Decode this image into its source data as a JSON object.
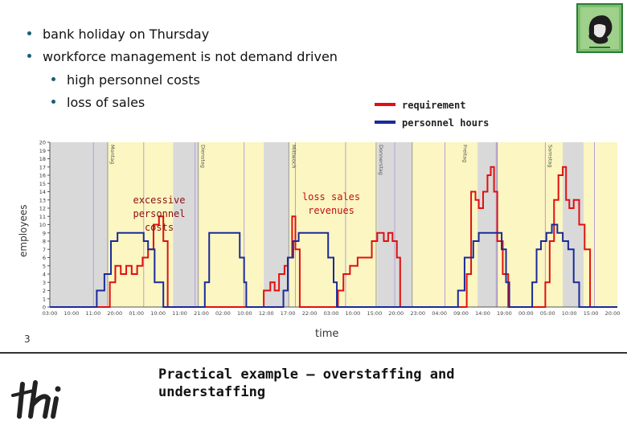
{
  "bullets": [
    {
      "text": "bank holiday on Thursday",
      "level": 1
    },
    {
      "text": "workforce management is not demand driven",
      "level": 1
    },
    {
      "text": "high personnel costs",
      "level": 2
    },
    {
      "text": "loss of sales",
      "level": 2
    }
  ],
  "legend": {
    "requirement": "requirement",
    "personnel_hours": "personnel hours"
  },
  "annotations": {
    "excessive": "excessive personnel costs",
    "loss": "loss sales revenues"
  },
  "axis": {
    "ylabel": "employees",
    "xlabel": "time"
  },
  "slide": {
    "page_number": "3",
    "title": "Practical example – overstaffing and understaffing"
  },
  "colors": {
    "requirement": "#e01010",
    "personnel_hours": "#1a2a99",
    "yellow_band": "#fbf6c2",
    "gray_band": "#d9d9d9"
  },
  "chart_data": {
    "type": "line",
    "title": "",
    "xlabel": "time",
    "ylabel": "employees",
    "ylim": [
      0,
      20
    ],
    "yticks": [
      0,
      1,
      2,
      3,
      4,
      5,
      6,
      7,
      8,
      9,
      10,
      11,
      12,
      13,
      14,
      15,
      16,
      17,
      18,
      19,
      20
    ],
    "xtick_labels": [
      "03:00",
      "10:00",
      "11:00",
      "20:00",
      "01:00",
      "10:00",
      "11:00",
      "21:00",
      "02:00",
      "10:00",
      "12:00",
      "17:00",
      "22:00",
      "03:00",
      "10:00",
      "15:00",
      "20:00",
      "23:00",
      "04:00",
      "09:00",
      "14:00",
      "19:00",
      "00:00",
      "05:00",
      "10:00",
      "15:00",
      "20:00"
    ],
    "day_labels": [
      "Montag",
      "Dienstag",
      "Mittwoch",
      "Donnerstag",
      "Freitag",
      "Samstag"
    ],
    "series": [
      {
        "name": "requirement",
        "steps": [
          [
            0,
            0
          ],
          [
            4,
            0
          ],
          [
            5.5,
            3
          ],
          [
            6,
            5
          ],
          [
            6.5,
            4
          ],
          [
            7,
            5
          ],
          [
            7.5,
            4
          ],
          [
            8,
            5
          ],
          [
            8.5,
            6
          ],
          [
            9,
            7
          ],
          [
            9.5,
            10
          ],
          [
            10,
            11
          ],
          [
            10.4,
            8
          ],
          [
            10.8,
            0
          ],
          [
            19,
            0
          ],
          [
            19.6,
            2
          ],
          [
            20.2,
            3
          ],
          [
            20.6,
            2
          ],
          [
            21,
            4
          ],
          [
            21.5,
            5
          ],
          [
            21.8,
            6
          ],
          [
            22.2,
            11
          ],
          [
            22.5,
            7
          ],
          [
            22.9,
            0
          ],
          [
            26,
            0
          ],
          [
            26.4,
            2
          ],
          [
            26.9,
            4
          ],
          [
            27.5,
            5
          ],
          [
            28.2,
            6
          ],
          [
            29.5,
            8
          ],
          [
            30,
            9
          ],
          [
            30.6,
            8
          ],
          [
            31,
            9
          ],
          [
            31.4,
            8
          ],
          [
            31.8,
            6
          ],
          [
            32.1,
            0
          ],
          [
            38,
            0
          ],
          [
            38.2,
            4
          ],
          [
            38.6,
            14
          ],
          [
            39,
            13
          ],
          [
            39.3,
            12
          ],
          [
            39.7,
            14
          ],
          [
            40.1,
            16
          ],
          [
            40.4,
            17
          ],
          [
            40.7,
            14
          ],
          [
            41,
            8
          ],
          [
            41.5,
            4
          ],
          [
            42,
            0
          ],
          [
            45,
            0
          ],
          [
            45.4,
            3
          ],
          [
            45.8,
            8
          ],
          [
            46.2,
            13
          ],
          [
            46.6,
            16
          ],
          [
            47,
            17
          ],
          [
            47.3,
            13
          ],
          [
            47.6,
            12
          ],
          [
            48,
            13
          ],
          [
            48.5,
            10
          ],
          [
            49,
            7
          ],
          [
            49.5,
            0
          ],
          [
            52,
            0
          ]
        ]
      },
      {
        "name": "personnel hours",
        "steps": [
          [
            0,
            0
          ],
          [
            4,
            0
          ],
          [
            4.3,
            2
          ],
          [
            5,
            4
          ],
          [
            5.6,
            8
          ],
          [
            6.2,
            9
          ],
          [
            8,
            9
          ],
          [
            8.6,
            8
          ],
          [
            9,
            7
          ],
          [
            9.6,
            3
          ],
          [
            10.4,
            0
          ],
          [
            14,
            0
          ],
          [
            14.2,
            3
          ],
          [
            14.6,
            9
          ],
          [
            17,
            9
          ],
          [
            17.4,
            6
          ],
          [
            17.8,
            3
          ],
          [
            18,
            0
          ],
          [
            21,
            0
          ],
          [
            21.4,
            2
          ],
          [
            21.8,
            6
          ],
          [
            22.3,
            8
          ],
          [
            22.8,
            9
          ],
          [
            25,
            9
          ],
          [
            25.5,
            6
          ],
          [
            26,
            3
          ],
          [
            26.3,
            0
          ],
          [
            37,
            0
          ],
          [
            37.4,
            2
          ],
          [
            38,
            6
          ],
          [
            38.8,
            8
          ],
          [
            39.3,
            9
          ],
          [
            41,
            9
          ],
          [
            41.4,
            7
          ],
          [
            41.8,
            3
          ],
          [
            42.1,
            0
          ],
          [
            44,
            0
          ],
          [
            44.2,
            3
          ],
          [
            44.6,
            7
          ],
          [
            45,
            8
          ],
          [
            45.5,
            9
          ],
          [
            46,
            10
          ],
          [
            46.5,
            9
          ],
          [
            47,
            8
          ],
          [
            47.5,
            7
          ],
          [
            48,
            3
          ],
          [
            48.5,
            0
          ],
          [
            52,
            0
          ]
        ]
      }
    ]
  }
}
